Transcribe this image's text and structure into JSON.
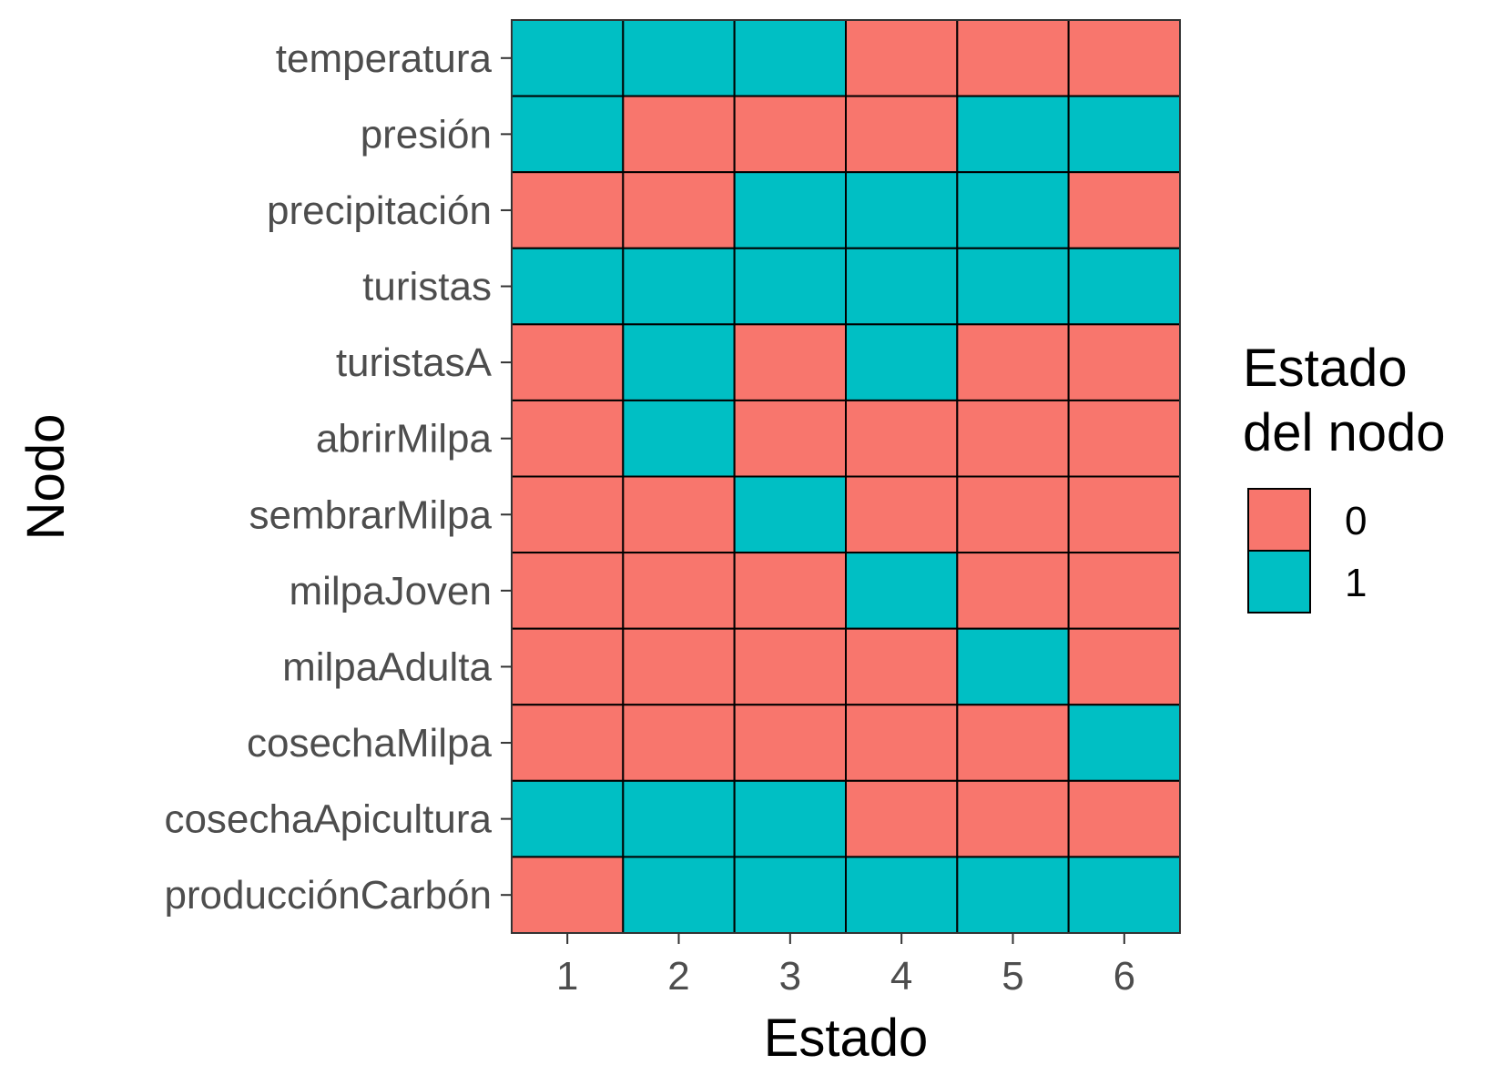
{
  "chart_data": {
    "type": "heatmap",
    "xlabel": "Estado",
    "ylabel": "Nodo",
    "x": [
      "1",
      "2",
      "3",
      "4",
      "5",
      "6"
    ],
    "y": [
      "temperatura",
      "presión",
      "precipitación",
      "turistas",
      "turistasA",
      "abrirMilpa",
      "sembrarMilpa",
      "milpaJoven",
      "milpaAdulta",
      "cosechaMilpa",
      "cosechaApicultura",
      "producciónCarbón"
    ],
    "values": [
      [
        1,
        1,
        1,
        0,
        0,
        0
      ],
      [
        1,
        0,
        0,
        0,
        1,
        1
      ],
      [
        0,
        0,
        1,
        1,
        1,
        0
      ],
      [
        1,
        1,
        1,
        1,
        1,
        1
      ],
      [
        0,
        1,
        0,
        1,
        0,
        0
      ],
      [
        0,
        1,
        0,
        0,
        0,
        0
      ],
      [
        0,
        0,
        1,
        0,
        0,
        0
      ],
      [
        0,
        0,
        0,
        1,
        0,
        0
      ],
      [
        0,
        0,
        0,
        0,
        1,
        0
      ],
      [
        0,
        0,
        0,
        0,
        0,
        1
      ],
      [
        1,
        1,
        1,
        0,
        0,
        0
      ],
      [
        0,
        1,
        1,
        1,
        1,
        1
      ]
    ],
    "legend": {
      "title": [
        "Estado",
        "del nodo"
      ],
      "position": "right",
      "entries": [
        {
          "label": "0",
          "value": 0,
          "color": "#F8766D"
        },
        {
          "label": "1",
          "value": 1,
          "color": "#00BFC4"
        }
      ]
    },
    "grid": false
  }
}
